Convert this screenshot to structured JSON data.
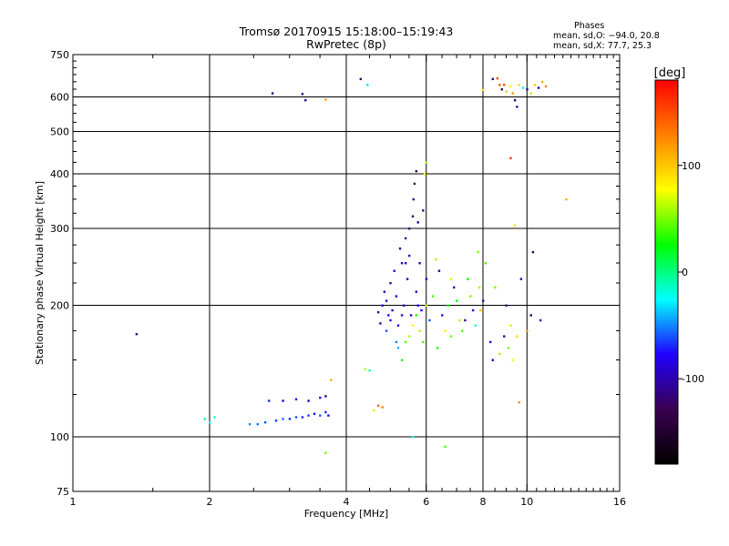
{
  "chart_data": {
    "type": "scatter",
    "title": "Tromsø 20170915 15:18:00–15:19:43",
    "subtitle": "RwPretec (8p)",
    "stats": {
      "heading": "Phases",
      "line1": "mean, sd,O: −94.0, 20.8",
      "line2": "mean, sd,X:  77.7, 25.3"
    },
    "xlabel": "Frequency [MHz]",
    "ylabel": "Stationary phase Virtual Height [km]",
    "x_scale": "log",
    "y_scale": "log",
    "xlim": [
      1,
      16
    ],
    "ylim": [
      75,
      750
    ],
    "x_ticks": [
      1,
      2,
      4,
      6,
      8,
      10,
      16
    ],
    "x_tick_labels": [
      "1",
      "2",
      "4",
      "6",
      "8",
      "10",
      "16"
    ],
    "y_ticks": [
      75,
      100,
      200,
      300,
      400,
      500,
      600,
      750
    ],
    "y_tick_labels": [
      "75",
      "100",
      "200",
      "300",
      "400",
      "500",
      "600",
      "750"
    ],
    "x_gridlines": [
      2,
      4,
      6,
      8,
      10
    ],
    "y_gridlines": [
      100,
      200,
      300,
      400,
      500,
      600
    ],
    "grid": true,
    "colorbar": {
      "label": "[deg]",
      "range": [
        -180,
        180
      ],
      "ticks": [
        100,
        0,
        -100
      ],
      "tick_labels": [
        "100",
        "0",
        "-100"
      ],
      "stops": [
        "#000000",
        "#3a0050",
        "#2000ff",
        "#00ffff",
        "#00ff00",
        "#ffff00",
        "#ff8000",
        "#ff0000"
      ]
    },
    "series": [
      {
        "points": [
          [
            1.38,
            172,
            -110
          ],
          [
            1.95,
            110,
            -5
          ],
          [
            2.0,
            108,
            -25
          ],
          [
            2.05,
            111,
            -20
          ],
          [
            2.45,
            107,
            -50
          ],
          [
            2.55,
            107,
            -55
          ],
          [
            2.65,
            108,
            -60
          ],
          [
            2.8,
            109,
            -65
          ],
          [
            2.9,
            110,
            -55
          ],
          [
            3.0,
            110,
            -70
          ],
          [
            3.1,
            111,
            -60
          ],
          [
            3.2,
            111,
            -70
          ],
          [
            3.3,
            112,
            -65
          ],
          [
            3.4,
            113,
            -75
          ],
          [
            3.5,
            112,
            -60
          ],
          [
            3.6,
            114,
            -70
          ],
          [
            3.65,
            112,
            -80
          ],
          [
            2.7,
            121,
            -70
          ],
          [
            2.9,
            121,
            -80
          ],
          [
            3.1,
            122,
            -75
          ],
          [
            3.3,
            121,
            -90
          ],
          [
            3.5,
            123,
            -80
          ],
          [
            3.6,
            124,
            -120
          ],
          [
            2.75,
            612,
            -120
          ],
          [
            3.2,
            610,
            -110
          ],
          [
            3.25,
            590,
            -100
          ],
          [
            3.6,
            592,
            120
          ],
          [
            4.3,
            660,
            -130
          ],
          [
            4.45,
            640,
            -30
          ],
          [
            4.6,
            115,
            70
          ],
          [
            4.4,
            143,
            60
          ],
          [
            4.5,
            142,
            -10
          ],
          [
            4.7,
            193,
            -110
          ],
          [
            4.75,
            182,
            -100
          ],
          [
            4.8,
            200,
            -90
          ],
          [
            4.85,
            215,
            -100
          ],
          [
            4.9,
            205,
            -95
          ],
          [
            4.95,
            190,
            -85
          ],
          [
            5.0,
            225,
            -100
          ],
          [
            5.05,
            195,
            -90
          ],
          [
            5.1,
            240,
            -95
          ],
          [
            5.15,
            210,
            -100
          ],
          [
            5.2,
            180,
            -80
          ],
          [
            5.25,
            270,
            -110
          ],
          [
            5.3,
            250,
            -100
          ],
          [
            5.35,
            200,
            -95
          ],
          [
            5.4,
            285,
            -110
          ],
          [
            5.45,
            230,
            -100
          ],
          [
            5.5,
            300,
            -120
          ],
          [
            5.55,
            190,
            -90
          ],
          [
            5.6,
            320,
            -130
          ],
          [
            5.62,
            350,
            -120
          ],
          [
            5.65,
            380,
            -130
          ],
          [
            5.7,
            406,
            -140
          ],
          [
            5.75,
            310,
            -110
          ],
          [
            5.8,
            250,
            -100
          ],
          [
            5.85,
            195,
            -85
          ],
          [
            5.9,
            330,
            -120
          ],
          [
            5.2,
            160,
            -40
          ],
          [
            5.3,
            150,
            20
          ],
          [
            5.4,
            165,
            40
          ],
          [
            5.5,
            170,
            60
          ],
          [
            5.6,
            180,
            80
          ],
          [
            5.7,
            190,
            30
          ],
          [
            5.8,
            175,
            60
          ],
          [
            5.9,
            165,
            40
          ],
          [
            6.0,
            200,
            70
          ],
          [
            6.0,
            230,
            -100
          ],
          [
            6.1,
            185,
            -60
          ],
          [
            6.2,
            210,
            40
          ],
          [
            6.3,
            255,
            60
          ],
          [
            6.4,
            240,
            -100
          ],
          [
            6.5,
            190,
            -90
          ],
          [
            6.6,
            175,
            80
          ],
          [
            6.7,
            200,
            30
          ],
          [
            6.8,
            170,
            50
          ],
          [
            6.9,
            220,
            -100
          ],
          [
            7.0,
            205,
            20
          ],
          [
            7.1,
            185,
            60
          ],
          [
            7.2,
            175,
            40
          ],
          [
            7.4,
            230,
            30
          ],
          [
            7.5,
            210,
            50
          ],
          [
            7.6,
            195,
            -90
          ],
          [
            7.7,
            180,
            -20
          ],
          [
            7.8,
            265,
            50
          ],
          [
            7.85,
            220,
            60
          ],
          [
            8.0,
            205,
            -100
          ],
          [
            8.1,
            250,
            40
          ],
          [
            8.3,
            165,
            -80
          ],
          [
            8.5,
            220,
            50
          ],
          [
            8.7,
            155,
            60
          ],
          [
            8.9,
            170,
            -100
          ],
          [
            9.0,
            200,
            -110
          ],
          [
            9.2,
            180,
            70
          ],
          [
            9.3,
            150,
            80
          ],
          [
            9.5,
            170,
            90
          ],
          [
            9.6,
            120,
            120
          ],
          [
            9.7,
            230,
            -100
          ],
          [
            10.0,
            175,
            120
          ],
          [
            10.2,
            190,
            -120
          ],
          [
            10.3,
            265,
            -130
          ],
          [
            10.7,
            185,
            -100
          ],
          [
            5.6,
            100,
            -20
          ],
          [
            3.7,
            135,
            110
          ],
          [
            3.6,
            92,
            50
          ],
          [
            6.6,
            95,
            40
          ],
          [
            5.95,
            400,
            80
          ],
          [
            6.0,
            425,
            60
          ],
          [
            9.2,
            435,
            160
          ],
          [
            9.4,
            305,
            90
          ],
          [
            12.2,
            350,
            110
          ],
          [
            8.4,
            660,
            -110
          ],
          [
            8.6,
            662,
            150
          ],
          [
            8.7,
            640,
            140
          ],
          [
            8.8,
            625,
            -120
          ],
          [
            9.0,
            618,
            100
          ],
          [
            9.2,
            635,
            80
          ],
          [
            9.3,
            612,
            120
          ],
          [
            9.4,
            590,
            -120
          ],
          [
            9.5,
            570,
            -110
          ],
          [
            9.6,
            640,
            90
          ],
          [
            9.8,
            630,
            -30
          ],
          [
            10.0,
            625,
            -110
          ],
          [
            10.2,
            612,
            60
          ],
          [
            10.4,
            640,
            100
          ],
          [
            10.6,
            630,
            -110
          ],
          [
            10.8,
            650,
            110
          ],
          [
            11.0,
            635,
            130
          ],
          [
            8.0,
            623,
            90
          ],
          [
            4.8,
            117,
            130
          ],
          [
            4.7,
            118,
            140
          ],
          [
            8.9,
            640,
            150
          ],
          [
            5.4,
            250,
            -95
          ],
          [
            5.5,
            260,
            -105
          ],
          [
            5.3,
            190,
            -80
          ],
          [
            4.9,
            175,
            -60
          ],
          [
            5.0,
            185,
            -75
          ],
          [
            5.15,
            165,
            -50
          ],
          [
            5.7,
            215,
            -90
          ],
          [
            5.75,
            200,
            -85
          ],
          [
            6.35,
            160,
            30
          ],
          [
            6.8,
            230,
            70
          ],
          [
            7.3,
            185,
            -110
          ],
          [
            7.9,
            195,
            100
          ],
          [
            8.4,
            150,
            -90
          ],
          [
            9.1,
            160,
            50
          ]
        ]
      }
    ]
  }
}
